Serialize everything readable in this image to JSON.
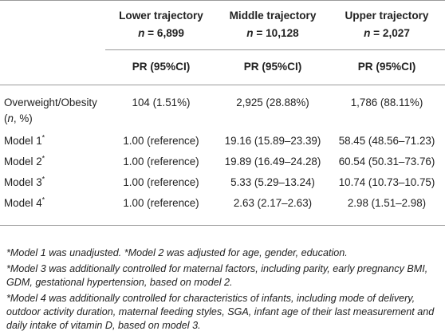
{
  "columns": [
    {
      "name": "Lower trajectory",
      "n_label": "n",
      "n_value": "= 6,899",
      "stat": "PR (95%CI)"
    },
    {
      "name": "Middle trajectory",
      "n_label": "n",
      "n_value": "= 10,128",
      "stat": "PR (95%CI)"
    },
    {
      "name": "Upper trajectory",
      "n_label": "n",
      "n_value": "= 2,027",
      "stat": "PR (95%CI)"
    }
  ],
  "prevalence_row": {
    "label_line1": "Overweight/Obesity",
    "label_line2_n": "n",
    "label_line2_rest": ", %)",
    "label_line2_open": "(",
    "values": [
      "104 (1.51%)",
      "2,925 (28.88%)",
      "1,786 (88.11%)"
    ]
  },
  "model_rows": [
    {
      "label": "Model 1",
      "mark": "*",
      "values": [
        "1.00 (reference)",
        "19.16 (15.89–23.39)",
        "58.45 (48.56–71.23)"
      ]
    },
    {
      "label": "Model 2",
      "mark": "*",
      "values": [
        "1.00 (reference)",
        "19.89 (16.49–24.28)",
        "60.54 (50.31–73.76)"
      ]
    },
    {
      "label": "Model 3",
      "mark": "*",
      "values": [
        "1.00 (reference)",
        "5.33 (5.29–13.24)",
        "10.74 (10.73–10.75)"
      ]
    },
    {
      "label": "Model 4",
      "mark": "*",
      "values": [
        "1.00 (reference)",
        "2.63 (2.17–2.63)",
        "2.98 (1.51–2.98)"
      ]
    }
  ],
  "footnotes": [
    "*Model 1 was unadjusted.  *Model 2 was adjusted for age, gender, education.",
    "*Model 3 was additionally controlled for maternal factors, including parity, early pregnancy BMI, GDM, gestational hypertension, based on model 2.",
    "*Model 4 was additionally controlled for characteristics of infants, including mode of delivery, outdoor activity duration, maternal feeding styles, SGA, infant age of their last measurement and daily intake of vitamin D, based on model 3."
  ]
}
